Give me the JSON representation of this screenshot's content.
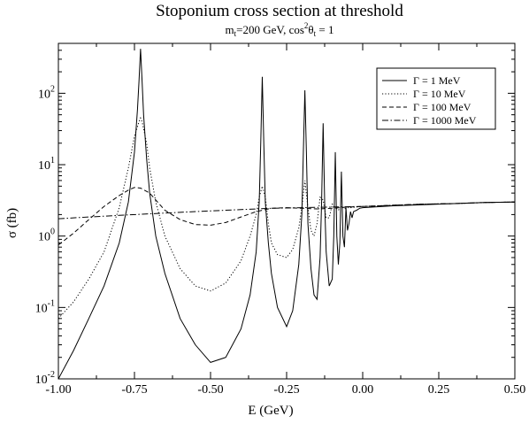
{
  "chart_data": {
    "type": "line",
    "title": "Stoponium cross section at threshold",
    "subtitle": {
      "prefix": "m",
      "prefix_sub": "t",
      "mid": "=200 GeV, cos",
      "sup": "2",
      "theta": "θ",
      "theta_sub": "t",
      "suffix": " = 1"
    },
    "xlabel": "E (GeV)",
    "ylabel": "σ (fb)",
    "xlim": [
      -1.0,
      0.5
    ],
    "ylim": [
      0.01,
      500
    ],
    "y_scale": "log",
    "x_ticks": [
      -1.0,
      -0.75,
      -0.5,
      -0.25,
      0.0,
      0.25,
      0.5
    ],
    "x_tick_labels": [
      "-1.00",
      "-0.75",
      "-0.50",
      "-0.25",
      "0.00",
      "0.25",
      "0.50"
    ],
    "y_ticks": [
      0.01,
      0.1,
      1,
      10,
      100
    ],
    "y_tick_labels": [
      {
        "base": "10",
        "exp": "-2"
      },
      {
        "base": "10",
        "exp": "-1"
      },
      {
        "base": "10",
        "exp": "0"
      },
      {
        "base": "10",
        "exp": "1"
      },
      {
        "base": "10",
        "exp": "2"
      }
    ],
    "grid": false,
    "legend_position": "top-right",
    "series": [
      {
        "name": "Γ = 1 MeV",
        "style": "solid",
        "x": [
          -1.0,
          -0.95,
          -0.9,
          -0.85,
          -0.8,
          -0.77,
          -0.75,
          -0.74,
          -0.735,
          -0.73,
          -0.725,
          -0.72,
          -0.71,
          -0.7,
          -0.68,
          -0.65,
          -0.6,
          -0.55,
          -0.5,
          -0.45,
          -0.4,
          -0.37,
          -0.35,
          -0.34,
          -0.335,
          -0.33,
          -0.325,
          -0.32,
          -0.31,
          -0.3,
          -0.28,
          -0.25,
          -0.23,
          -0.21,
          -0.2,
          -0.195,
          -0.19,
          -0.185,
          -0.18,
          -0.17,
          -0.16,
          -0.15,
          -0.14,
          -0.135,
          -0.13,
          -0.125,
          -0.12,
          -0.11,
          -0.1,
          -0.095,
          -0.09,
          -0.085,
          -0.08,
          -0.075,
          -0.07,
          -0.065,
          -0.06,
          -0.055,
          -0.05,
          -0.045,
          -0.04,
          -0.035,
          -0.03,
          -0.02,
          -0.01,
          0.0,
          0.1,
          0.2,
          0.3,
          0.4,
          0.5
        ],
        "y": [
          0.01,
          0.025,
          0.07,
          0.2,
          0.8,
          3,
          15,
          60,
          150,
          420,
          150,
          50,
          12,
          4,
          1.0,
          0.3,
          0.07,
          0.03,
          0.017,
          0.02,
          0.05,
          0.15,
          0.6,
          3,
          20,
          170,
          20,
          3,
          0.8,
          0.3,
          0.1,
          0.054,
          0.09,
          0.4,
          2,
          15,
          110,
          15,
          1.5,
          0.35,
          0.15,
          0.13,
          0.5,
          3,
          38,
          3,
          0.6,
          0.2,
          0.25,
          1.0,
          15,
          1.0,
          0.4,
          0.8,
          8,
          1.0,
          0.7,
          2.5,
          1.2,
          1.5,
          2.2,
          1.8,
          2.2,
          2.3,
          2.45,
          2.5,
          2.65,
          2.75,
          2.85,
          2.95,
          3.0
        ]
      },
      {
        "name": "Γ = 10 MeV",
        "style": "dotted",
        "x": [
          -1.0,
          -0.95,
          -0.9,
          -0.85,
          -0.8,
          -0.77,
          -0.75,
          -0.735,
          -0.73,
          -0.725,
          -0.71,
          -0.7,
          -0.68,
          -0.65,
          -0.6,
          -0.55,
          -0.5,
          -0.45,
          -0.4,
          -0.37,
          -0.35,
          -0.34,
          -0.33,
          -0.32,
          -0.31,
          -0.3,
          -0.28,
          -0.25,
          -0.23,
          -0.21,
          -0.2,
          -0.19,
          -0.18,
          -0.17,
          -0.16,
          -0.15,
          -0.14,
          -0.13,
          -0.12,
          -0.11,
          -0.1,
          -0.09,
          -0.08,
          -0.07,
          -0.06,
          -0.05,
          -0.04,
          -0.02,
          0.0,
          0.1,
          0.2,
          0.3,
          0.4,
          0.5
        ],
        "y": [
          0.07,
          0.12,
          0.25,
          0.6,
          2.5,
          9,
          25,
          40,
          45,
          40,
          20,
          9,
          3,
          1.0,
          0.35,
          0.2,
          0.17,
          0.22,
          0.45,
          1.0,
          2.0,
          3.5,
          5,
          3.5,
          1.5,
          0.8,
          0.55,
          0.5,
          0.65,
          1.3,
          2.5,
          6,
          2.5,
          1.2,
          1.0,
          1.5,
          3.5,
          3.2,
          1.8,
          1.8,
          2.8,
          2.5,
          2.3,
          2.6,
          2.4,
          2.5,
          2.5,
          2.55,
          2.6,
          2.7,
          2.8,
          2.85,
          2.95,
          3.0
        ]
      },
      {
        "name": "Γ = 100 MeV",
        "style": "dashed",
        "x": [
          -1.0,
          -0.95,
          -0.9,
          -0.85,
          -0.8,
          -0.77,
          -0.75,
          -0.73,
          -0.7,
          -0.68,
          -0.65,
          -0.6,
          -0.55,
          -0.5,
          -0.45,
          -0.4,
          -0.35,
          -0.3,
          -0.25,
          -0.2,
          -0.15,
          -0.1,
          -0.05,
          0.0,
          0.1,
          0.2,
          0.3,
          0.4,
          0.5
        ],
        "y": [
          0.75,
          1.1,
          1.7,
          2.6,
          3.7,
          4.4,
          4.8,
          4.7,
          4.0,
          3.2,
          2.3,
          1.7,
          1.45,
          1.42,
          1.55,
          1.85,
          2.2,
          2.45,
          2.5,
          2.45,
          2.4,
          2.45,
          2.55,
          2.6,
          2.7,
          2.8,
          2.85,
          2.95,
          3.0
        ]
      },
      {
        "name": "Γ = 1000 MeV",
        "style": "dashdot",
        "x": [
          -1.0,
          -0.9,
          -0.8,
          -0.7,
          -0.6,
          -0.5,
          -0.4,
          -0.3,
          -0.2,
          -0.1,
          0.0,
          0.1,
          0.2,
          0.3,
          0.4,
          0.5
        ],
        "y": [
          1.75,
          1.85,
          1.95,
          2.05,
          2.15,
          2.25,
          2.35,
          2.45,
          2.5,
          2.55,
          2.6,
          2.7,
          2.8,
          2.85,
          2.95,
          3.0
        ]
      }
    ]
  }
}
